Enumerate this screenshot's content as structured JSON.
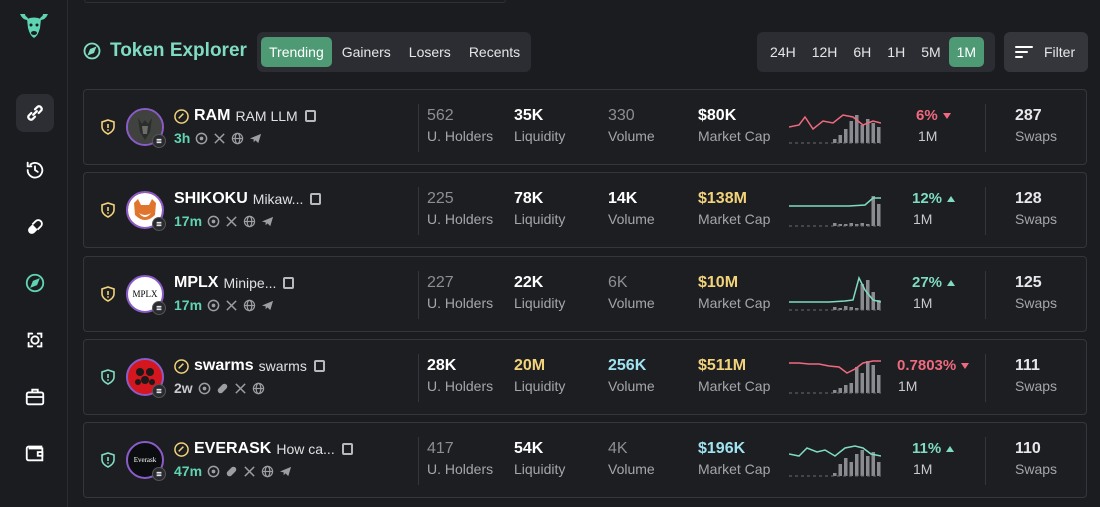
{
  "header": {
    "title": "Token Explorer"
  },
  "tabs": [
    {
      "label": "Trending",
      "active": true
    },
    {
      "label": "Gainers",
      "active": false
    },
    {
      "label": "Losers",
      "active": false
    },
    {
      "label": "Recents",
      "active": false
    }
  ],
  "timeframes": [
    {
      "label": "24H",
      "active": false
    },
    {
      "label": "12H",
      "active": false
    },
    {
      "label": "6H",
      "active": false
    },
    {
      "label": "1H",
      "active": false
    },
    {
      "label": "5M",
      "active": false
    },
    {
      "label": "1M",
      "active": true
    }
  ],
  "filter": {
    "label": "Filter"
  },
  "stat_labels": {
    "holders": "U. Holders",
    "liquidity": "Liquidity",
    "volume": "Volume",
    "mcap": "Market Cap",
    "swaps": "Swaps"
  },
  "tokens": [
    {
      "symbol": "RAM",
      "name": "RAM LLM",
      "age": "3h",
      "holders": "562",
      "liquidity": "35K",
      "volume": "330",
      "mcap": "$80K",
      "change": "6%",
      "direction": "down",
      "timeframe": "1M",
      "swaps": "287",
      "avatar_color": "#3a3d3a",
      "line_color": "#f06a7e"
    },
    {
      "symbol": "SHIKOKU",
      "name": "Mikaw...",
      "age": "17m",
      "holders": "225",
      "liquidity": "78K",
      "volume": "14K",
      "mcap": "$138M",
      "change": "12%",
      "direction": "up",
      "timeframe": "1M",
      "swaps": "128",
      "avatar_color": "#e0762e",
      "line_color": "#7fdcc2"
    },
    {
      "symbol": "MPLX",
      "name": "Minipe...",
      "age": "17m",
      "holders": "227",
      "liquidity": "22K",
      "volume": "6K",
      "mcap": "$10M",
      "change": "27%",
      "direction": "up",
      "timeframe": "1M",
      "swaps": "125",
      "avatar_color": "#ffffff",
      "line_color": "#7fdcc2",
      "avatar_text": "MPLX"
    },
    {
      "symbol": "swarms",
      "name": "swarms",
      "age": "2w",
      "holders": "28K",
      "liquidity": "20M",
      "volume": "256K",
      "mcap": "$511M",
      "change": "0.7803%",
      "direction": "down",
      "timeframe": "1M",
      "swaps": "111",
      "avatar_color": "#d4161e",
      "line_color": "#f06a7e"
    },
    {
      "symbol": "EVERASK",
      "name": "How ca...",
      "age": "47m",
      "holders": "417",
      "liquidity": "54K",
      "volume": "4K",
      "mcap": "$196K",
      "change": "11%",
      "direction": "up",
      "timeframe": "1M",
      "swaps": "110",
      "avatar_color": "#0c0d10",
      "line_color": "#7fdcc2",
      "avatar_text": "Everask"
    }
  ],
  "colors": {
    "accent": "#4e9a74",
    "title": "#7fdcc2",
    "up": "#7fdcc2",
    "down": "#f06a7e",
    "gold": "#f2d37a",
    "cyan": "#9fe3f0"
  }
}
